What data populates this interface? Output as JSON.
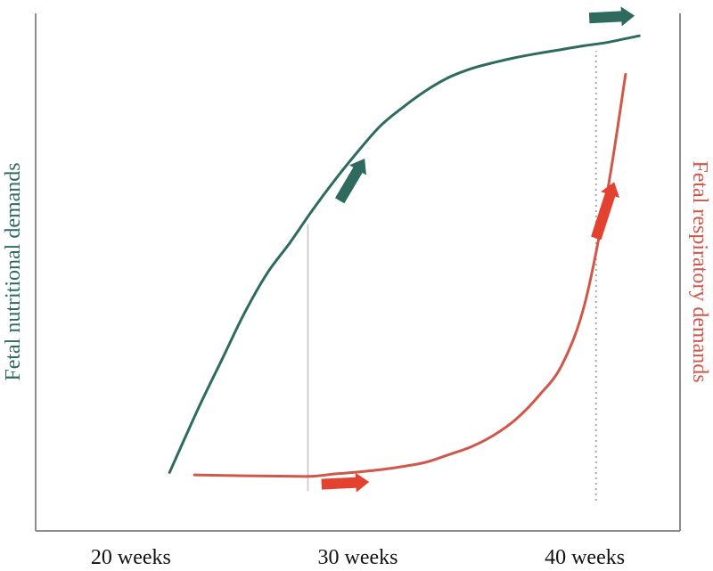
{
  "chart_data": {
    "type": "line",
    "xlabel": "",
    "x_ticks": [
      "20 weeks",
      "30 weeks",
      "40 weeks"
    ],
    "x_tick_values": [
      20,
      30,
      40
    ],
    "xlim": [
      15.8,
      44.2
    ],
    "ylabel_left": "Fetal nutritional demands",
    "ylabel_right": "Fetal respiratory demands",
    "ylim": [
      0,
      100
    ],
    "grid": false,
    "legend": "none",
    "series": [
      {
        "axis": "left",
        "color": "#2e6b5e",
        "x": [
          21.7,
          23,
          24,
          25,
          26,
          27,
          28,
          29,
          30,
          31,
          32,
          33,
          34,
          35,
          36,
          37,
          38,
          39,
          40,
          41,
          42.4
        ],
        "y": [
          6,
          20,
          30,
          40,
          48.5,
          55,
          62,
          68.5,
          74.5,
          80,
          84,
          87.5,
          90.3,
          92.2,
          93.5,
          94.6,
          95.5,
          96.3,
          97.1,
          97.8,
          99.2
        ]
      },
      {
        "axis": "right",
        "color": "#d0574a",
        "x": [
          22.8,
          25,
          27,
          28,
          29,
          30,
          31,
          32,
          33,
          34,
          35,
          36,
          37,
          38,
          39,
          40,
          41,
          41.8
        ],
        "y": [
          5.5,
          5.3,
          5.2,
          5.2,
          5.7,
          6.1,
          6.6,
          7.3,
          8.2,
          9.8,
          11.5,
          14,
          17.5,
          22.5,
          29,
          42,
          66,
          91
        ]
      }
    ],
    "reference_lines": [
      {
        "x": 27.8,
        "style": "solid",
        "color": "#c4c4c4",
        "ymin": 2,
        "ymax": 59
      },
      {
        "x": 40.5,
        "style": "dotted",
        "color": "#aaaaaa",
        "ymin": 0,
        "ymax": 96
      }
    ],
    "arrows": [
      {
        "color": "#2e6b5e",
        "from": [
          29.2,
          64
        ],
        "to": [
          30.3,
          73
        ]
      },
      {
        "color": "#2e6b5e",
        "from": [
          40.2,
          103
        ],
        "to": [
          42.2,
          103.5
        ]
      },
      {
        "color": "#e2422f",
        "from": [
          28.4,
          3.5
        ],
        "to": [
          30.5,
          4
        ]
      },
      {
        "color": "#e2422f",
        "from": [
          40.5,
          56
        ],
        "to": [
          41.3,
          68
        ]
      }
    ]
  }
}
